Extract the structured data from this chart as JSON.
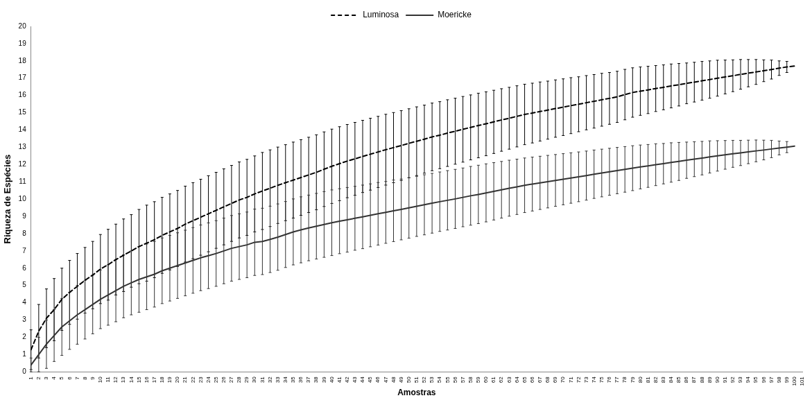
{
  "chart_data": {
    "type": "line",
    "xlabel": "Amostras",
    "ylabel": "Riqueza de Espécies",
    "legend": "top",
    "grid": false,
    "marker": "none",
    "categories": [
      "1",
      "2",
      "3",
      "4",
      "5",
      "6",
      "7",
      "8",
      "9",
      "10",
      "11",
      "12",
      "13",
      "14",
      "15",
      "16",
      "17",
      "18",
      "19",
      "20",
      "21",
      "22",
      "23",
      "24",
      "25",
      "26",
      "27",
      "28",
      "29",
      "30",
      "31",
      "32",
      "33",
      "34",
      "35",
      "36",
      "37",
      "38",
      "39",
      "40",
      "41",
      "42",
      "43",
      "44",
      "45",
      "46",
      "47",
      "48",
      "49",
      "50",
      "51",
      "52",
      "53",
      "54",
      "55",
      "56",
      "57",
      "58",
      "59",
      "60",
      "61",
      "62",
      "63",
      "64",
      "65",
      "66",
      "67",
      "68",
      "69",
      "70",
      "71",
      "72",
      "73",
      "74",
      "75",
      "76",
      "77",
      "78",
      "79",
      "80",
      "81",
      "82",
      "83",
      "84",
      "85",
      "86",
      "87",
      "88",
      "89",
      "90",
      "91",
      "92",
      "93",
      "94",
      "95",
      "96",
      "97",
      "98",
      "99",
      "100",
      "101"
    ],
    "ylim": [
      0,
      20
    ],
    "yticks": [
      0,
      1,
      2,
      3,
      4,
      5,
      6,
      7,
      8,
      9,
      10,
      11,
      12,
      13,
      14,
      15,
      16,
      17,
      18,
      19,
      20
    ],
    "series": [
      {
        "name": "Luminosa",
        "color": "#000000",
        "line_style": "dashed",
        "values": [
          1.28,
          2.35,
          3.1,
          3.6,
          4.2,
          4.6,
          4.95,
          5.3,
          5.6,
          5.95,
          6.2,
          6.5,
          6.75,
          7.0,
          7.25,
          7.45,
          7.65,
          7.9,
          8.1,
          8.3,
          8.55,
          8.75,
          8.95,
          9.15,
          9.35,
          9.55,
          9.75,
          9.95,
          10.1,
          10.3,
          10.47,
          10.63,
          10.8,
          10.95,
          11.1,
          11.25,
          11.4,
          11.55,
          11.73,
          11.9,
          12.05,
          12.2,
          12.33,
          12.47,
          12.6,
          12.73,
          12.86,
          12.98,
          13.1,
          13.23,
          13.35,
          13.47,
          13.6,
          13.7,
          13.82,
          13.93,
          14.04,
          14.15,
          14.26,
          14.36,
          14.47,
          14.58,
          14.68,
          14.79,
          14.9,
          14.98,
          15.07,
          15.15,
          15.24,
          15.32,
          15.41,
          15.49,
          15.58,
          15.66,
          15.75,
          15.83,
          15.92,
          16.05,
          16.17,
          16.25,
          16.32,
          16.4,
          16.47,
          16.55,
          16.62,
          16.7,
          16.77,
          16.85,
          16.92,
          17.0,
          17.07,
          17.14,
          17.22,
          17.29,
          17.36,
          17.43,
          17.5,
          17.58,
          17.65,
          17.7,
          null
        ],
        "errors": [
          1.15,
          1.55,
          1.7,
          1.8,
          1.8,
          1.85,
          1.9,
          1.9,
          1.95,
          2.0,
          2.05,
          2.05,
          2.1,
          2.1,
          2.15,
          2.2,
          2.2,
          2.2,
          2.2,
          2.2,
          2.2,
          2.2,
          2.2,
          2.2,
          2.2,
          2.2,
          2.2,
          2.2,
          2.2,
          2.2,
          2.23,
          2.22,
          2.21,
          2.2,
          2.2,
          2.19,
          2.18,
          2.17,
          2.16,
          2.15,
          2.14,
          2.12,
          2.11,
          2.09,
          2.08,
          2.06,
          2.05,
          2.03,
          2.02,
          2.0,
          1.99,
          1.97,
          1.96,
          1.94,
          1.93,
          1.91,
          1.9,
          1.88,
          1.87,
          1.85,
          1.83,
          1.81,
          1.79,
          1.77,
          1.75,
          1.73,
          1.71,
          1.68,
          1.66,
          1.64,
          1.62,
          1.59,
          1.57,
          1.55,
          1.53,
          1.5,
          1.48,
          1.46,
          1.43,
          1.4,
          1.37,
          1.33,
          1.3,
          1.27,
          1.23,
          1.18,
          1.15,
          1.12,
          1.08,
          1.04,
          0.98,
          0.92,
          0.86,
          0.79,
          0.72,
          0.63,
          0.55,
          0.42,
          0.32,
          null,
          null
        ]
      },
      {
        "name": "Moericke",
        "color": "#333333",
        "line_style": "solid",
        "values": [
          0.4,
          1.0,
          1.6,
          2.1,
          2.6,
          2.95,
          3.3,
          3.6,
          3.9,
          4.2,
          4.45,
          4.7,
          4.95,
          5.15,
          5.35,
          5.5,
          5.65,
          5.85,
          6.0,
          6.15,
          6.3,
          6.45,
          6.6,
          6.72,
          6.85,
          7.0,
          7.15,
          7.25,
          7.35,
          7.5,
          7.55,
          7.67,
          7.8,
          7.95,
          8.1,
          8.22,
          8.33,
          8.43,
          8.53,
          8.63,
          8.72,
          8.8,
          8.89,
          8.97,
          9.06,
          9.15,
          9.23,
          9.32,
          9.4,
          9.49,
          9.58,
          9.67,
          9.76,
          9.85,
          9.93,
          10.01,
          10.1,
          10.19,
          10.27,
          10.36,
          10.45,
          10.54,
          10.63,
          10.71,
          10.8,
          10.87,
          10.94,
          11.01,
          11.08,
          11.15,
          11.22,
          11.29,
          11.36,
          11.44,
          11.51,
          11.58,
          11.65,
          11.72,
          11.79,
          11.86,
          11.92,
          11.99,
          12.05,
          12.12,
          12.18,
          12.25,
          12.31,
          12.37,
          12.44,
          12.5,
          12.56,
          12.62,
          12.67,
          12.73,
          12.79,
          12.84,
          12.9,
          12.96,
          13.01,
          13.07,
          null
        ],
        "errors": [
          0.4,
          1.0,
          1.4,
          1.5,
          1.65,
          1.65,
          1.7,
          1.7,
          1.7,
          1.7,
          1.75,
          1.8,
          1.82,
          1.85,
          1.9,
          1.9,
          1.9,
          1.9,
          1.9,
          1.9,
          1.9,
          1.9,
          1.9,
          1.9,
          1.9,
          1.9,
          1.9,
          1.9,
          1.9,
          1.92,
          1.92,
          1.92,
          1.92,
          1.91,
          1.91,
          1.91,
          1.9,
          1.9,
          1.9,
          1.9,
          1.88,
          1.87,
          1.85,
          1.84,
          1.82,
          1.81,
          1.79,
          1.78,
          1.76,
          1.75,
          1.74,
          1.74,
          1.73,
          1.72,
          1.72,
          1.71,
          1.7,
          1.7,
          1.69,
          1.68,
          1.66,
          1.64,
          1.62,
          1.6,
          1.58,
          1.56,
          1.54,
          1.52,
          1.5,
          1.48,
          1.46,
          1.44,
          1.42,
          1.4,
          1.38,
          1.36,
          1.34,
          1.32,
          1.3,
          1.27,
          1.24,
          1.21,
          1.17,
          1.14,
          1.1,
          1.05,
          1.01,
          0.97,
          0.93,
          0.88,
          0.83,
          0.78,
          0.73,
          0.68,
          0.63,
          0.57,
          0.5,
          0.4,
          0.32,
          null,
          null
        ]
      }
    ]
  }
}
